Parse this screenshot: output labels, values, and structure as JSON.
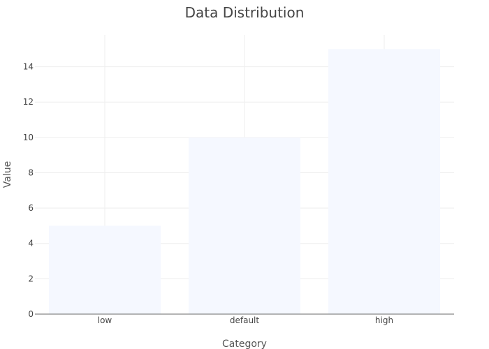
{
  "chart_data": {
    "type": "bar",
    "title": "Data Distribution",
    "xlabel": "Category",
    "ylabel": "Value",
    "categories": [
      "low",
      "default",
      "high"
    ],
    "values": [
      5,
      10,
      15
    ],
    "ylim": [
      0,
      15.8
    ],
    "yticks": [
      0,
      2,
      4,
      6,
      8,
      10,
      12,
      14
    ],
    "grid": true,
    "bar_color": "#f5f8ff",
    "grid_color": "#eeeeee",
    "baseline_color": "#888888"
  }
}
